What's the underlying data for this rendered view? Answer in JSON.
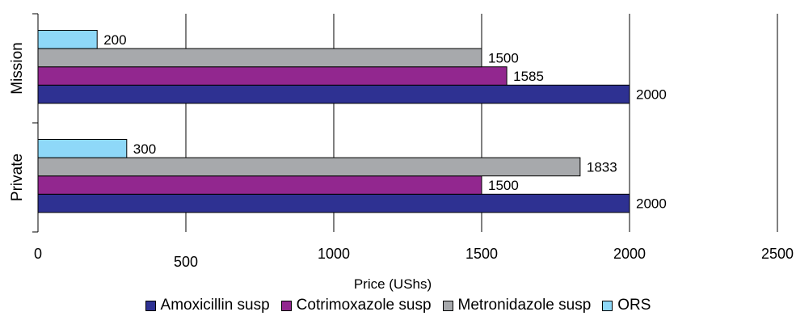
{
  "chart_data": {
    "type": "bar",
    "orientation": "horizontal",
    "categories": [
      "Mission",
      "Private"
    ],
    "series": [
      {
        "name": "Amoxicillin susp",
        "color": "#2e3192",
        "values": [
          2000,
          2000
        ]
      },
      {
        "name": "Cotrimoxazole susp",
        "color": "#92278f",
        "values": [
          1585,
          1500
        ]
      },
      {
        "name": "Metronidazole susp",
        "color": "#a7a9ac",
        "values": [
          1500,
          1833
        ]
      },
      {
        "name": "ORS",
        "color": "#8ed8f8",
        "values": [
          200,
          300
        ]
      }
    ],
    "data_labels": [
      [
        "2000",
        "2000"
      ],
      [
        "1585",
        "1500"
      ],
      [
        "1500",
        "1833"
      ],
      [
        "200",
        "300"
      ]
    ],
    "xlabel": "Price (UShs)",
    "ylabel": "",
    "xlim": [
      0,
      2500
    ],
    "xticks": [
      0,
      500,
      1000,
      1500,
      2000,
      2500
    ],
    "xtick_labels": [
      "0",
      "500",
      "1000",
      "1500",
      "2000",
      "2500"
    ],
    "grid": true,
    "legend_position": "bottom"
  }
}
